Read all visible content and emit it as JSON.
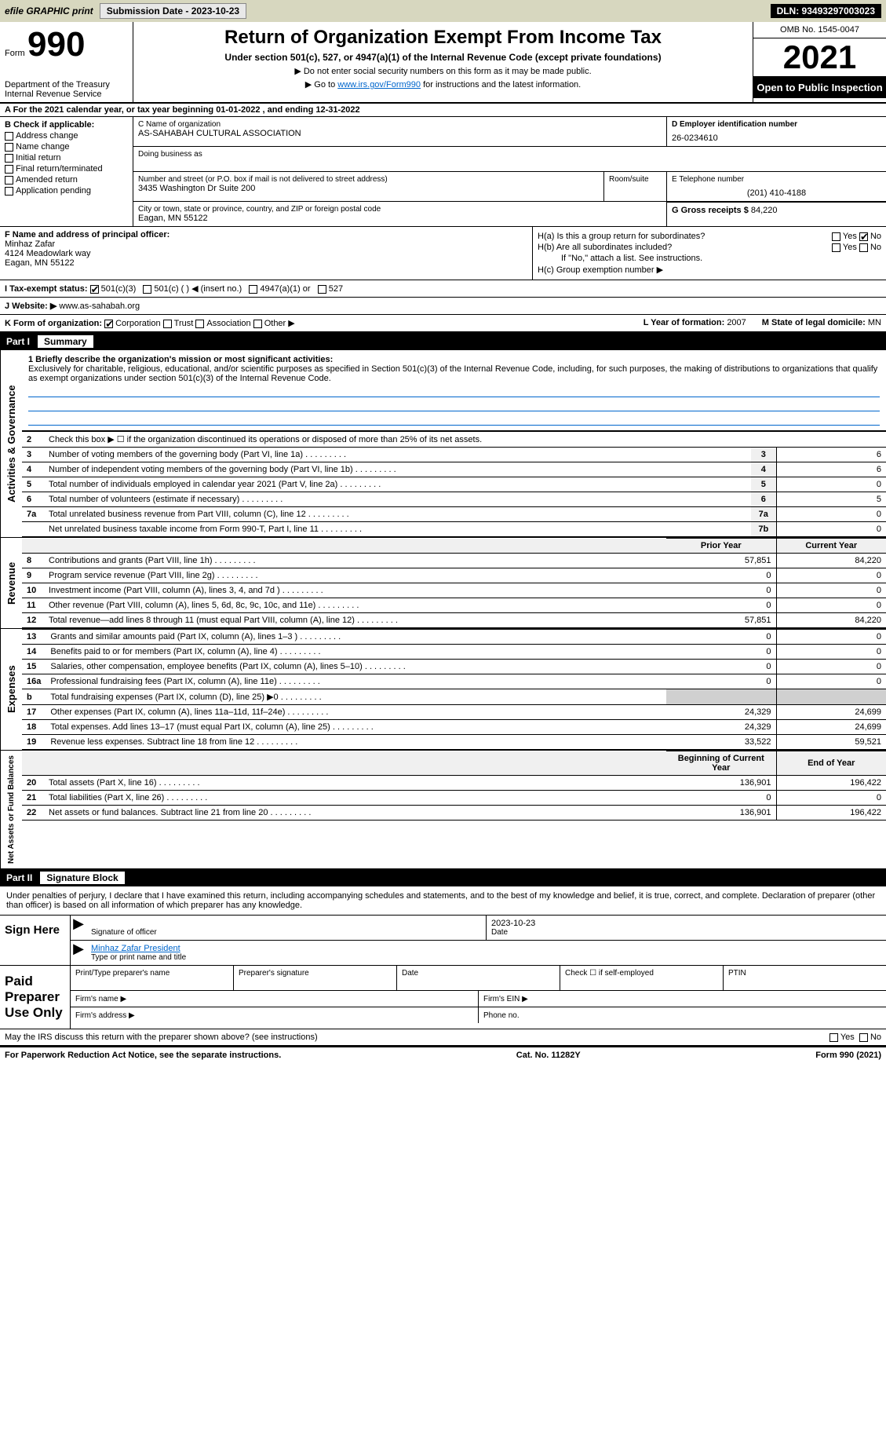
{
  "topbar": {
    "efile": "efile GRAPHIC print",
    "submission_label": "Submission Date - 2023-10-23",
    "dln": "DLN: 93493297003023"
  },
  "header": {
    "form_word": "Form",
    "form_number": "990",
    "dept": "Department of the Treasury",
    "irs": "Internal Revenue Service",
    "title": "Return of Organization Exempt From Income Tax",
    "subtitle": "Under section 501(c), 527, or 4947(a)(1) of the Internal Revenue Code (except private foundations)",
    "note1": "▶ Do not enter social security numbers on this form as it may be made public.",
    "note2_pre": "▶ Go to ",
    "note2_link": "www.irs.gov/Form990",
    "note2_post": " for instructions and the latest information.",
    "omb": "OMB No. 1545-0047",
    "year": "2021",
    "open_public": "Open to Public Inspection"
  },
  "section_a": "A For the 2021 calendar year, or tax year beginning 01-01-2022    , and ending 12-31-2022",
  "col_b": {
    "title": "B Check if applicable:",
    "items": [
      "Address change",
      "Name change",
      "Initial return",
      "Final return/terminated",
      "Amended return",
      "Application pending"
    ]
  },
  "col_c": {
    "name_label": "C Name of organization",
    "name": "AS-SAHABAH CULTURAL ASSOCIATION",
    "dba_label": "Doing business as",
    "street_label": "Number and street (or P.O. box if mail is not delivered to street address)",
    "room_label": "Room/suite",
    "street": "3435 Washington Dr Suite 200",
    "city_label": "City or town, state or province, country, and ZIP or foreign postal code",
    "city": "Eagan, MN  55122",
    "d_label": "D Employer identification number",
    "d_value": "26-0234610",
    "e_label": "E Telephone number",
    "e_value": "(201) 410-4188",
    "g_label": "G Gross receipts $",
    "g_value": "84,220"
  },
  "block_f": {
    "label": "F Name and address of principal officer:",
    "name": "Minhaz Zafar",
    "addr1": "4124 Meadowlark way",
    "addr2": "Eagan, MN  55122"
  },
  "block_h": {
    "ha": "H(a)  Is this a group return for subordinates?",
    "ha_yes": "Yes",
    "ha_no": "No",
    "hb": "H(b)  Are all subordinates included?",
    "hb_yes": "Yes",
    "hb_no": "No",
    "hb_note": "If \"No,\" attach a list. See instructions.",
    "hc": "H(c)  Group exemption number ▶"
  },
  "row_i": {
    "label": "I  Tax-exempt status:",
    "opt1": "501(c)(3)",
    "opt2": "501(c) (  ) ◀ (insert no.)",
    "opt3": "4947(a)(1) or",
    "opt4": "527"
  },
  "row_j": {
    "label": "J  Website: ▶",
    "value": "www.as-sahabah.org"
  },
  "row_k": {
    "label": "K Form of organization:",
    "opts": [
      "Corporation",
      "Trust",
      "Association",
      "Other ▶"
    ],
    "l_label": "L Year of formation:",
    "l_value": "2007",
    "m_label": "M State of legal domicile:",
    "m_value": "MN"
  },
  "part1": {
    "num": "Part I",
    "title": "Summary"
  },
  "mission": {
    "label": "1  Briefly describe the organization's mission or most significant activities:",
    "text": "Exclusively for charitable, religious, educational, and/or scientific purposes as specified in Section 501(c)(3) of the Internal Revenue Code, including, for such purposes, the making of distributions to organizations that qualify as exempt organizations under section 501(c)(3) of the Internal Revenue Code."
  },
  "side_labels": {
    "gov": "Activities & Governance",
    "rev": "Revenue",
    "exp": "Expenses",
    "net": "Net Assets or Fund Balances"
  },
  "gov_rows": [
    {
      "n": "2",
      "desc": "Check this box ▶ ☐  if the organization discontinued its operations or disposed of more than 25% of its net assets.",
      "num": "",
      "val": ""
    },
    {
      "n": "3",
      "desc": "Number of voting members of the governing body (Part VI, line 1a)",
      "num": "3",
      "val": "6"
    },
    {
      "n": "4",
      "desc": "Number of independent voting members of the governing body (Part VI, line 1b)",
      "num": "4",
      "val": "6"
    },
    {
      "n": "5",
      "desc": "Total number of individuals employed in calendar year 2021 (Part V, line 2a)",
      "num": "5",
      "val": "0"
    },
    {
      "n": "6",
      "desc": "Total number of volunteers (estimate if necessary)",
      "num": "6",
      "val": "5"
    },
    {
      "n": "7a",
      "desc": "Total unrelated business revenue from Part VIII, column (C), line 12",
      "num": "7a",
      "val": "0"
    },
    {
      "n": "",
      "desc": "Net unrelated business taxable income from Form 990-T, Part I, line 11",
      "num": "7b",
      "val": "0"
    }
  ],
  "two_col_header": {
    "prior": "Prior Year",
    "current": "Current Year"
  },
  "rev_rows": [
    {
      "n": "8",
      "desc": "Contributions and grants (Part VIII, line 1h)",
      "prior": "57,851",
      "current": "84,220"
    },
    {
      "n": "9",
      "desc": "Program service revenue (Part VIII, line 2g)",
      "prior": "0",
      "current": "0"
    },
    {
      "n": "10",
      "desc": "Investment income (Part VIII, column (A), lines 3, 4, and 7d )",
      "prior": "0",
      "current": "0"
    },
    {
      "n": "11",
      "desc": "Other revenue (Part VIII, column (A), lines 5, 6d, 8c, 9c, 10c, and 11e)",
      "prior": "0",
      "current": "0"
    },
    {
      "n": "12",
      "desc": "Total revenue—add lines 8 through 11 (must equal Part VIII, column (A), line 12)",
      "prior": "57,851",
      "current": "84,220"
    }
  ],
  "exp_rows": [
    {
      "n": "13",
      "desc": "Grants and similar amounts paid (Part IX, column (A), lines 1–3 )",
      "prior": "0",
      "current": "0"
    },
    {
      "n": "14",
      "desc": "Benefits paid to or for members (Part IX, column (A), line 4)",
      "prior": "0",
      "current": "0"
    },
    {
      "n": "15",
      "desc": "Salaries, other compensation, employee benefits (Part IX, column (A), lines 5–10)",
      "prior": "0",
      "current": "0"
    },
    {
      "n": "16a",
      "desc": "Professional fundraising fees (Part IX, column (A), line 11e)",
      "prior": "0",
      "current": "0"
    },
    {
      "n": "b",
      "desc": "Total fundraising expenses (Part IX, column (D), line 25) ▶0",
      "prior": "",
      "current": "",
      "shaded": true
    },
    {
      "n": "17",
      "desc": "Other expenses (Part IX, column (A), lines 11a–11d, 11f–24e)",
      "prior": "24,329",
      "current": "24,699"
    },
    {
      "n": "18",
      "desc": "Total expenses. Add lines 13–17 (must equal Part IX, column (A), line 25)",
      "prior": "24,329",
      "current": "24,699"
    },
    {
      "n": "19",
      "desc": "Revenue less expenses. Subtract line 18 from line 12",
      "prior": "33,522",
      "current": "59,521"
    }
  ],
  "net_header": {
    "prior": "Beginning of Current Year",
    "current": "End of Year"
  },
  "net_rows": [
    {
      "n": "20",
      "desc": "Total assets (Part X, line 16)",
      "prior": "136,901",
      "current": "196,422"
    },
    {
      "n": "21",
      "desc": "Total liabilities (Part X, line 26)",
      "prior": "0",
      "current": "0"
    },
    {
      "n": "22",
      "desc": "Net assets or fund balances. Subtract line 21 from line 20",
      "prior": "136,901",
      "current": "196,422"
    }
  ],
  "part2": {
    "num": "Part II",
    "title": "Signature Block"
  },
  "sig_text": "Under penalties of perjury, I declare that I have examined this return, including accompanying schedules and statements, and to the best of my knowledge and belief, it is true, correct, and complete. Declaration of preparer (other than officer) is based on all information of which preparer has any knowledge.",
  "sign_here": {
    "label": "Sign Here",
    "sig_officer": "Signature of officer",
    "date_label": "Date",
    "date": "2023-10-23",
    "name": "Minhaz Zafar  President",
    "name_label": "Type or print name and title"
  },
  "paid_prep": {
    "label": "Paid Preparer Use Only",
    "r1_a": "Print/Type preparer's name",
    "r1_b": "Preparer's signature",
    "r1_c": "Date",
    "r1_d": "Check ☐ if self-employed",
    "r1_e": "PTIN",
    "r2_a": "Firm's name   ▶",
    "r2_b": "Firm's EIN ▶",
    "r3_a": "Firm's address ▶",
    "r3_b": "Phone no."
  },
  "discuss": {
    "text": "May the IRS discuss this return with the preparer shown above? (see instructions)",
    "yes": "Yes",
    "no": "No"
  },
  "footer": {
    "left": "For Paperwork Reduction Act Notice, see the separate instructions.",
    "cat": "Cat. No. 11282Y",
    "right": "Form 990 (2021)"
  }
}
